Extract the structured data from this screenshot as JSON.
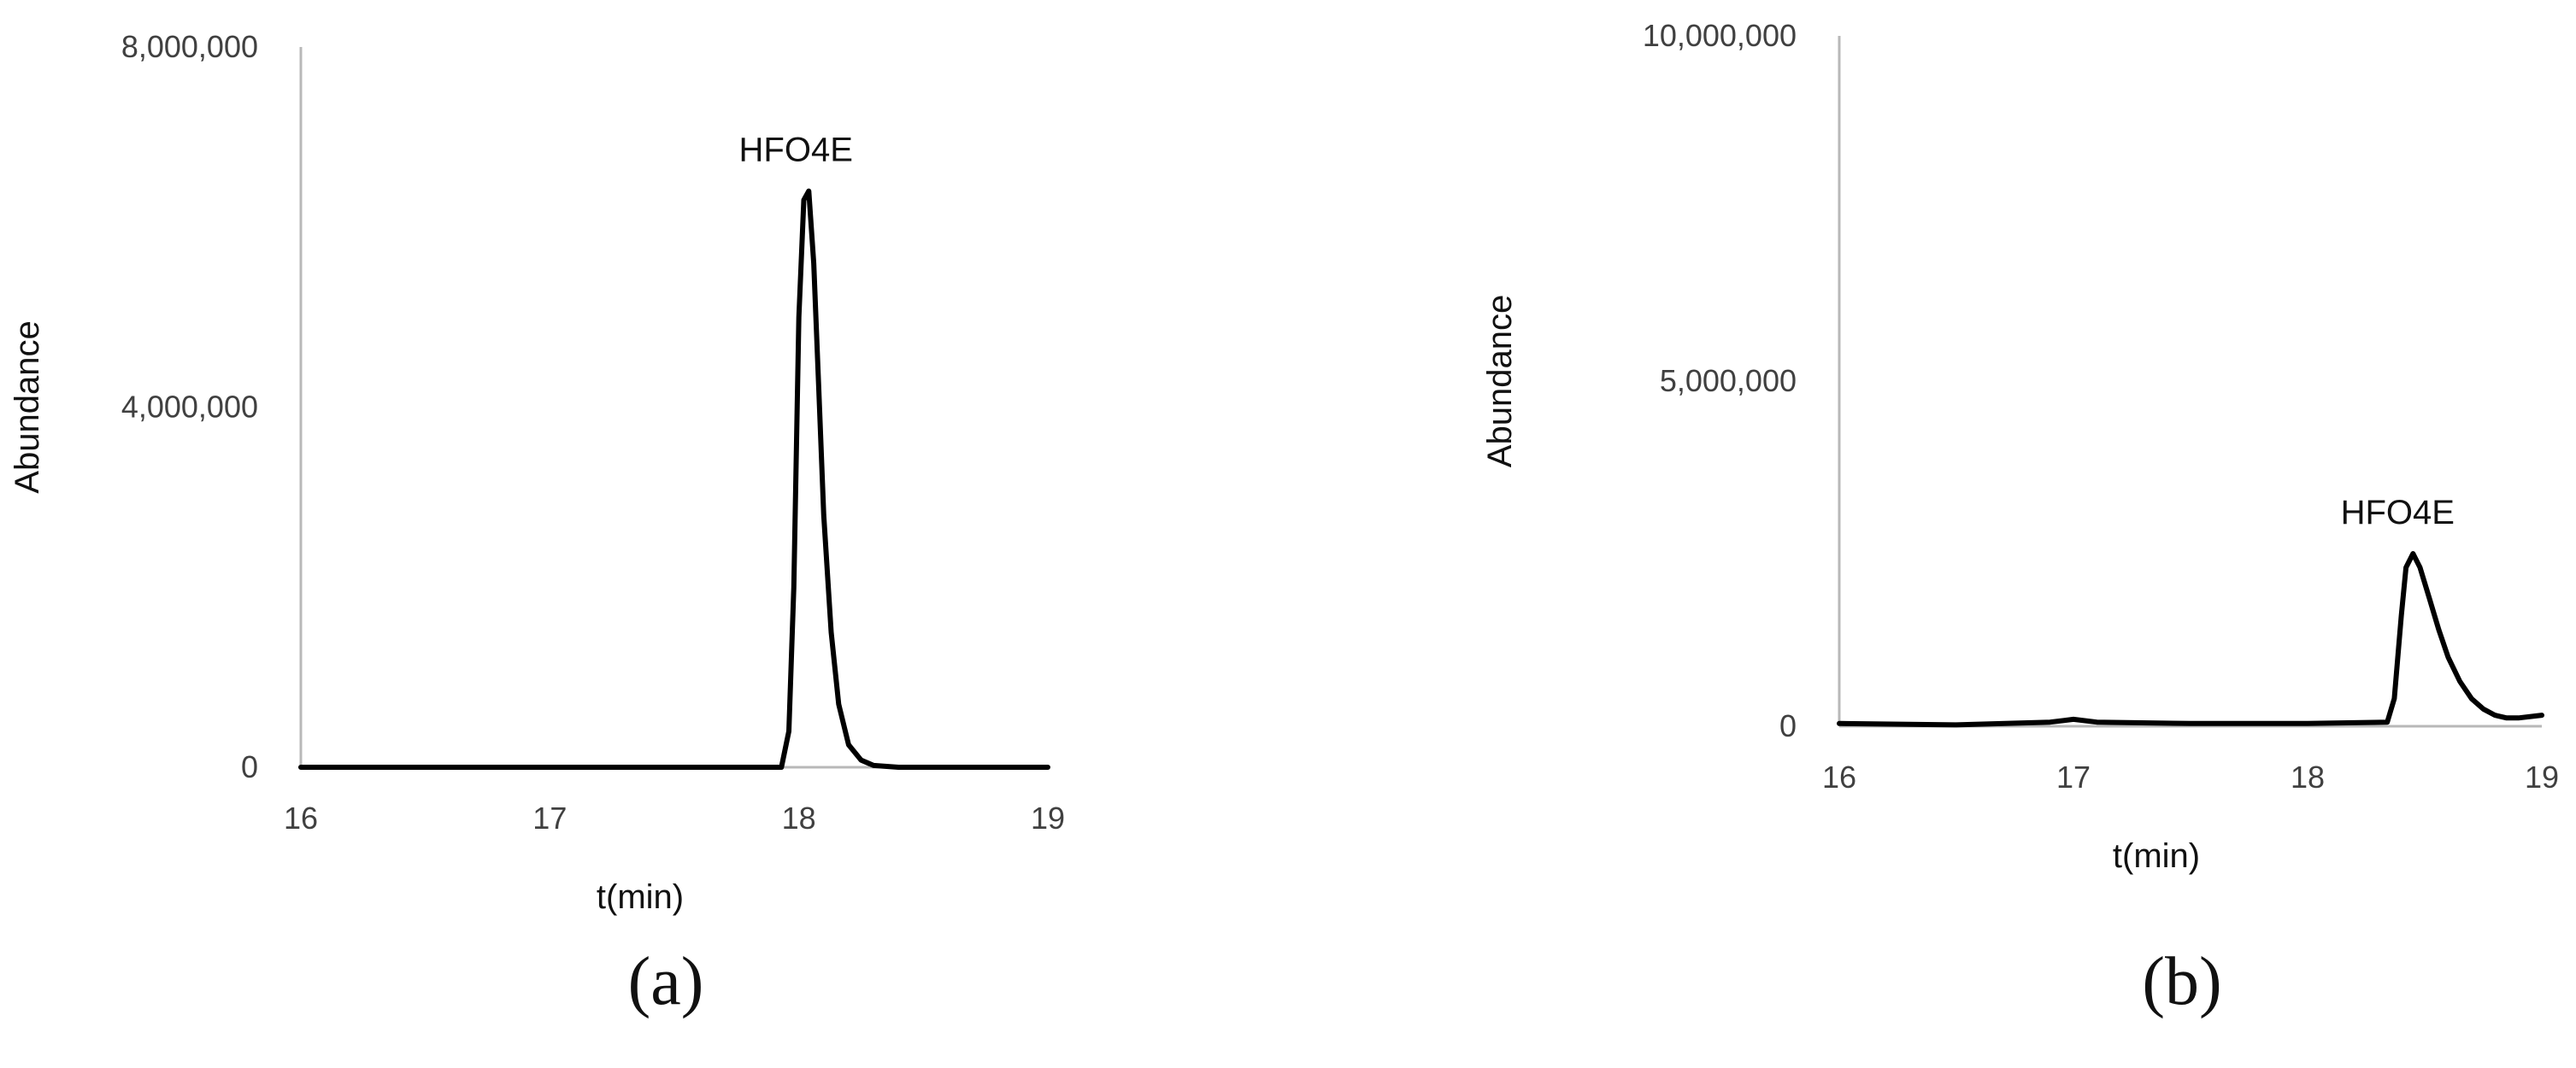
{
  "chart_data": [
    {
      "type": "line",
      "panel_label": "(a)",
      "xlabel": "t(min)",
      "ylabel": "Abundance",
      "xlim": [
        16,
        19
      ],
      "ylim": [
        0,
        8000000
      ],
      "x_ticks": [
        "16",
        "17",
        "18",
        "19"
      ],
      "y_ticks": [
        "0",
        "4,000,000",
        "8,000,000"
      ],
      "annotations": [
        {
          "text": "HFO4E",
          "x": 18.05,
          "y": 6400000
        }
      ],
      "series": [
        {
          "x": [
            16.0,
            17.0,
            17.8,
            17.93,
            17.96,
            17.98,
            18.0,
            18.02,
            18.04,
            18.06,
            18.08,
            18.1,
            18.13,
            18.16,
            18.2,
            18.25,
            18.3,
            18.4,
            18.6,
            19.0
          ],
          "y": [
            0,
            0,
            0,
            0,
            400000,
            2000000,
            5000000,
            6300000,
            6400000,
            5600000,
            4200000,
            2800000,
            1500000,
            700000,
            250000,
            80000,
            20000,
            0,
            0,
            0
          ]
        }
      ]
    },
    {
      "type": "line",
      "panel_label": "(b)",
      "xlabel": "t(min)",
      "ylabel": "Abundance",
      "xlim": [
        16,
        19
      ],
      "ylim": [
        0,
        10000000
      ],
      "x_ticks": [
        "16",
        "17",
        "18",
        "19"
      ],
      "y_ticks": [
        "0",
        "5,000,000",
        "10,000,000"
      ],
      "annotations": [
        {
          "text": "HFO4E",
          "x": 18.45,
          "y": 2500000
        }
      ],
      "series": [
        {
          "x": [
            16.0,
            16.5,
            16.9,
            17.0,
            17.1,
            17.5,
            18.0,
            18.34,
            18.37,
            18.4,
            18.42,
            18.45,
            18.48,
            18.52,
            18.56,
            18.6,
            18.65,
            18.7,
            18.75,
            18.8,
            18.85,
            18.9,
            19.0
          ],
          "y": [
            40000,
            20000,
            60000,
            100000,
            60000,
            40000,
            40000,
            60000,
            400000,
            1600000,
            2300000,
            2500000,
            2300000,
            1850000,
            1400000,
            1000000,
            650000,
            400000,
            250000,
            160000,
            120000,
            120000,
            160000
          ]
        }
      ]
    }
  ]
}
